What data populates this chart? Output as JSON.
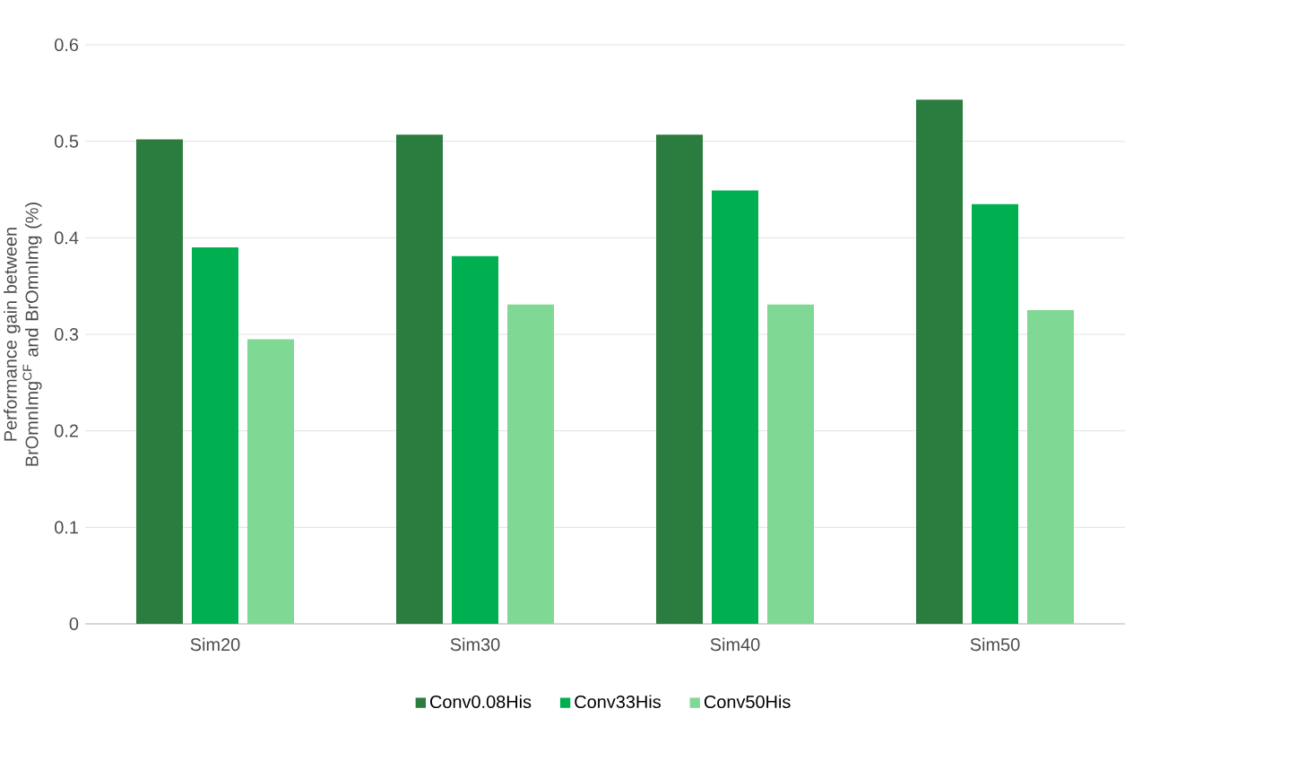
{
  "chart_data": {
    "type": "bar",
    "ylabel": "Performance gain between BrOmnImg$^{CF}$ and BrOmnImg (%)",
    "categories": [
      "Sim20",
      "Sim30",
      "Sim40",
      "Sim50"
    ],
    "series": [
      {
        "name": "Conv0.08His",
        "color": "#2b7d3f",
        "values": [
          0.502,
          0.507,
          0.507,
          0.543
        ]
      },
      {
        "name": "Conv33His",
        "color": "#00b050",
        "values": [
          0.39,
          0.381,
          0.449,
          0.435
        ]
      },
      {
        "name": "Conv50His",
        "color": "#7fd893",
        "values": [
          0.295,
          0.331,
          0.331,
          0.325
        ]
      }
    ],
    "ylim": [
      0,
      0.6
    ],
    "yticks": [
      0,
      0.1,
      0.2,
      0.3,
      0.4,
      0.5,
      0.6
    ],
    "grid": "y",
    "legend": "bottom"
  }
}
